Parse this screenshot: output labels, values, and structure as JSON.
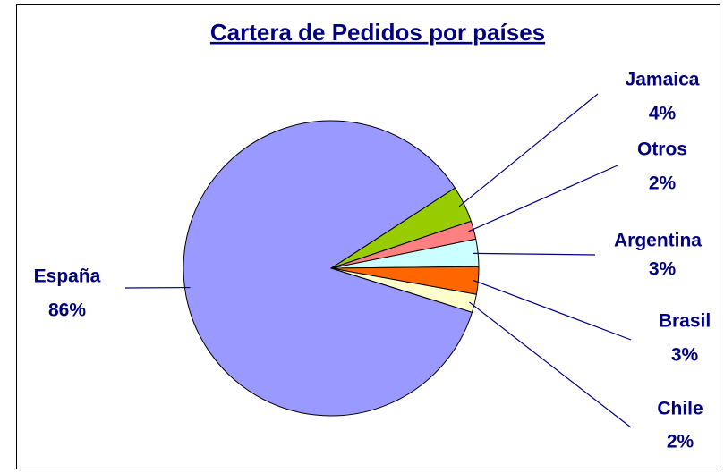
{
  "chart_data": {
    "type": "pie",
    "title": "Cartera de Pedidos por países",
    "categories": [
      "Jamaica",
      "Otros",
      "Argentina",
      "Brasil",
      "Chile",
      "España"
    ],
    "values": [
      4,
      2,
      3,
      3,
      2,
      86
    ],
    "value_labels": [
      "4%",
      "2%",
      "3%",
      "3%",
      "2%",
      "86%"
    ],
    "colors": [
      "#99cc00",
      "#ff8080",
      "#ccffff",
      "#ff6600",
      "#ffffcc",
      "#9999ff"
    ]
  }
}
